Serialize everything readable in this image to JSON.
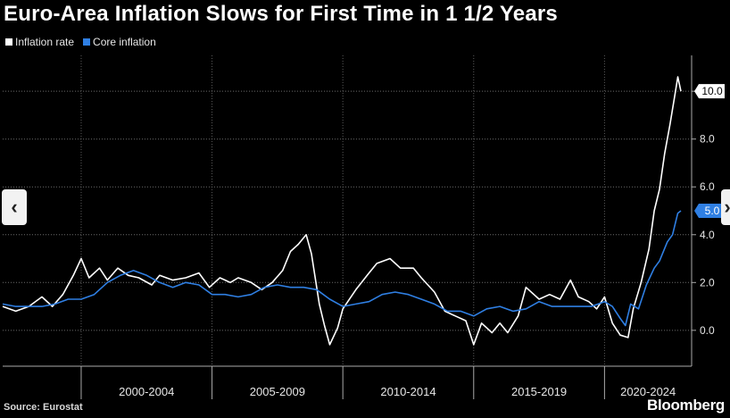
{
  "chart_data": {
    "type": "line",
    "title": "Euro-Area Inflation Slows for First Time in 1 1/2 Years",
    "xlabel": "",
    "ylabel": "",
    "x_range": [
      1997,
      2022.92
    ],
    "ylim": [
      -1.5,
      11.5
    ],
    "y_ticks": [
      0.0,
      2.0,
      4.0,
      6.0,
      8.0,
      10.0
    ],
    "x_groups": [
      "2000-2004",
      "2005-2009",
      "2010-2014",
      "2015-2019",
      "2020-2024"
    ],
    "grid": true,
    "legend_position": "top-left",
    "series": [
      {
        "name": "Inflation rate",
        "color": "#ffffff",
        "points": [
          [
            1997.0,
            1.0
          ],
          [
            1997.5,
            0.8
          ],
          [
            1998.0,
            1.0
          ],
          [
            1998.5,
            1.4
          ],
          [
            1998.9,
            1.0
          ],
          [
            1999.3,
            1.5
          ],
          [
            1999.7,
            2.3
          ],
          [
            2000.0,
            3.0
          ],
          [
            2000.3,
            2.2
          ],
          [
            2000.7,
            2.6
          ],
          [
            2001.0,
            2.1
          ],
          [
            2001.4,
            2.6
          ],
          [
            2001.8,
            2.3
          ],
          [
            2002.2,
            2.2
          ],
          [
            2002.7,
            1.9
          ],
          [
            2003.0,
            2.3
          ],
          [
            2003.5,
            2.1
          ],
          [
            2004.0,
            2.2
          ],
          [
            2004.5,
            2.4
          ],
          [
            2004.9,
            1.8
          ],
          [
            2005.3,
            2.2
          ],
          [
            2005.7,
            2.0
          ],
          [
            2006.0,
            2.2
          ],
          [
            2006.5,
            2.0
          ],
          [
            2006.9,
            1.7
          ],
          [
            2007.3,
            2.0
          ],
          [
            2007.7,
            2.5
          ],
          [
            2008.0,
            3.3
          ],
          [
            2008.3,
            3.6
          ],
          [
            2008.6,
            4.0
          ],
          [
            2008.8,
            3.2
          ],
          [
            2009.1,
            1.1
          ],
          [
            2009.3,
            0.2
          ],
          [
            2009.5,
            -0.6
          ],
          [
            2009.8,
            0.1
          ],
          [
            2010.0,
            0.9
          ],
          [
            2010.5,
            1.7
          ],
          [
            2011.0,
            2.4
          ],
          [
            2011.3,
            2.8
          ],
          [
            2011.8,
            3.0
          ],
          [
            2012.2,
            2.6
          ],
          [
            2012.7,
            2.6
          ],
          [
            2013.0,
            2.2
          ],
          [
            2013.5,
            1.6
          ],
          [
            2013.9,
            0.8
          ],
          [
            2014.3,
            0.6
          ],
          [
            2014.7,
            0.4
          ],
          [
            2015.0,
            -0.6
          ],
          [
            2015.3,
            0.3
          ],
          [
            2015.7,
            -0.1
          ],
          [
            2016.0,
            0.3
          ],
          [
            2016.3,
            -0.1
          ],
          [
            2016.7,
            0.6
          ],
          [
            2017.0,
            1.8
          ],
          [
            2017.5,
            1.3
          ],
          [
            2017.9,
            1.5
          ],
          [
            2018.3,
            1.3
          ],
          [
            2018.7,
            2.1
          ],
          [
            2019.0,
            1.4
          ],
          [
            2019.4,
            1.2
          ],
          [
            2019.7,
            0.9
          ],
          [
            2020.0,
            1.4
          ],
          [
            2020.3,
            0.3
          ],
          [
            2020.6,
            -0.2
          ],
          [
            2020.9,
            -0.3
          ],
          [
            2021.1,
            0.9
          ],
          [
            2021.4,
            2.0
          ],
          [
            2021.7,
            3.4
          ],
          [
            2021.9,
            5.0
          ],
          [
            2022.1,
            5.9
          ],
          [
            2022.3,
            7.4
          ],
          [
            2022.5,
            8.6
          ],
          [
            2022.7,
            9.9
          ],
          [
            2022.8,
            10.6
          ],
          [
            2022.92,
            10.0
          ]
        ],
        "last_value_label": "10.0"
      },
      {
        "name": "Core inflation",
        "color": "#2f7fe3",
        "points": [
          [
            1997.0,
            1.1
          ],
          [
            1997.5,
            1.0
          ],
          [
            1998.0,
            1.0
          ],
          [
            1998.5,
            1.0
          ],
          [
            1999.0,
            1.1
          ],
          [
            1999.5,
            1.3
          ],
          [
            2000.0,
            1.3
          ],
          [
            2000.5,
            1.5
          ],
          [
            2001.0,
            2.0
          ],
          [
            2001.5,
            2.3
          ],
          [
            2002.0,
            2.5
          ],
          [
            2002.5,
            2.3
          ],
          [
            2003.0,
            2.0
          ],
          [
            2003.5,
            1.8
          ],
          [
            2004.0,
            2.0
          ],
          [
            2004.5,
            1.9
          ],
          [
            2005.0,
            1.5
          ],
          [
            2005.5,
            1.5
          ],
          [
            2006.0,
            1.4
          ],
          [
            2006.5,
            1.5
          ],
          [
            2007.0,
            1.8
          ],
          [
            2007.5,
            1.9
          ],
          [
            2008.0,
            1.8
          ],
          [
            2008.5,
            1.8
          ],
          [
            2009.0,
            1.7
          ],
          [
            2009.5,
            1.3
          ],
          [
            2010.0,
            1.0
          ],
          [
            2010.5,
            1.1
          ],
          [
            2011.0,
            1.2
          ],
          [
            2011.5,
            1.5
          ],
          [
            2012.0,
            1.6
          ],
          [
            2012.5,
            1.5
          ],
          [
            2013.0,
            1.3
          ],
          [
            2013.5,
            1.1
          ],
          [
            2014.0,
            0.8
          ],
          [
            2014.5,
            0.8
          ],
          [
            2015.0,
            0.6
          ],
          [
            2015.5,
            0.9
          ],
          [
            2016.0,
            1.0
          ],
          [
            2016.5,
            0.8
          ],
          [
            2017.0,
            0.9
          ],
          [
            2017.5,
            1.2
          ],
          [
            2018.0,
            1.0
          ],
          [
            2018.5,
            1.0
          ],
          [
            2019.0,
            1.0
          ],
          [
            2019.5,
            1.0
          ],
          [
            2020.0,
            1.2
          ],
          [
            2020.3,
            1.0
          ],
          [
            2020.6,
            0.5
          ],
          [
            2020.8,
            0.2
          ],
          [
            2021.0,
            1.1
          ],
          [
            2021.3,
            0.9
          ],
          [
            2021.6,
            1.9
          ],
          [
            2021.9,
            2.6
          ],
          [
            2022.1,
            2.9
          ],
          [
            2022.4,
            3.7
          ],
          [
            2022.6,
            4.0
          ],
          [
            2022.8,
            4.9
          ],
          [
            2022.92,
            5.0
          ]
        ],
        "last_value_label": "5.0"
      }
    ]
  },
  "footer": {
    "source": "Source: Eurostat",
    "brand": "Bloomberg"
  },
  "nav": {
    "prev_glyph": "‹",
    "next_glyph": "›"
  }
}
